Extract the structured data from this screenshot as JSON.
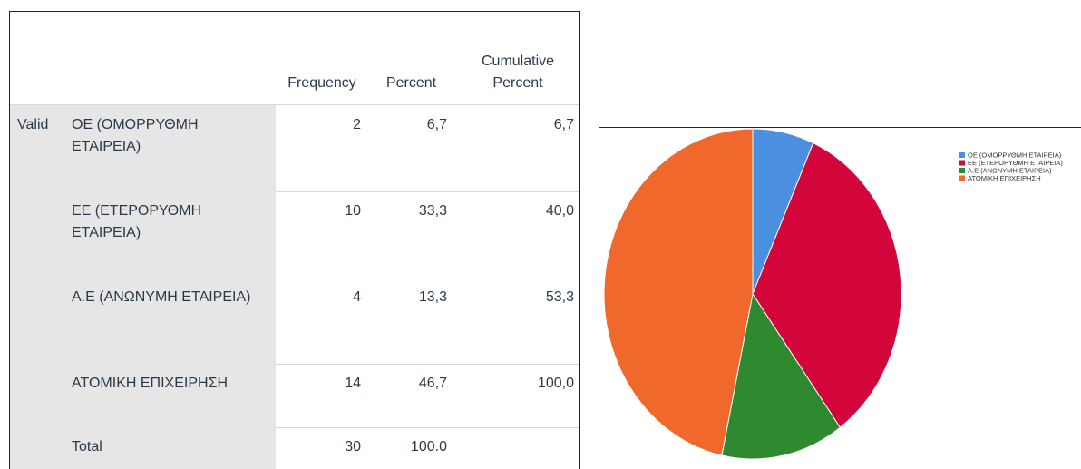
{
  "table": {
    "columns": [
      "Frequency",
      "Percent",
      "Cumulative Percent"
    ],
    "group": "Valid",
    "rows": [
      [
        "ΟΕ (ΟΜΟΡΡΥΘΜΗ ΕΤΑΙΡΕΙΑ)",
        "2",
        "6,7",
        "6,7"
      ],
      [
        "ΕΕ (ΕΤΕΡΟΡΥΘΜΗ ΕΤΑΙΡΕΙΑ)",
        "10",
        "33,3",
        "40,0"
      ],
      [
        "Α.Ε (ΑΝΩΝΥΜΗ ΕΤΑΙΡΕΙΑ)",
        "4",
        "13,3",
        "53,3"
      ],
      [
        "ΑΤΟΜΙΚΗ ΕΠΙΧΕΙΡΗΣΗ",
        "14",
        "46,7",
        "100,0"
      ]
    ],
    "total": [
      "Total",
      "30",
      "100.0"
    ]
  },
  "chart_data": {
    "type": "pie",
    "categories": [
      "ΟΕ (ΟΜΟΡΡΥΘΜΗ ΕΤΑΙΡΕΙΑ)",
      "ΕΕ (ΕΤΕΡΟΡΥΘΜΗ ΕΤΑΙΡΕΙΑ)",
      "Α.Ε (ΑΝΩΝΥΜΗ ΕΤΑΙΡΕΙΑ)",
      "ΑΤΟΜΙΚΗ ΕΠΙΧΕΙΡΗΣΗ"
    ],
    "values": [
      2,
      10,
      4,
      14
    ],
    "colors": [
      "#4a8fe0",
      "#d3063b",
      "#2f8a2f",
      "#f0682b"
    ],
    "legend": "top-right"
  }
}
